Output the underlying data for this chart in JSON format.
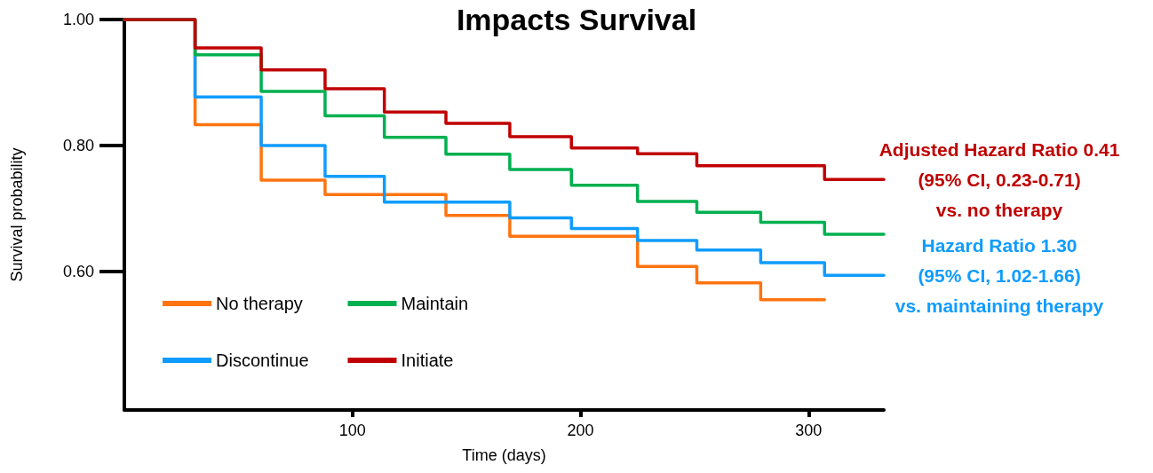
{
  "chart_data": {
    "type": "step",
    "title": "Impacts Survival",
    "xlabel": "Time (days)",
    "ylabel": "Survival probability",
    "x": [
      0,
      31,
      60,
      88,
      114,
      141,
      169,
      196,
      225,
      251,
      279,
      307,
      333
    ],
    "series": [
      {
        "name": "No therapy",
        "color": "#ff7410",
        "x": [
          0,
          31,
          60,
          88,
          114,
          141,
          169,
          196,
          225,
          251,
          279,
          307
        ],
        "values": [
          1.0,
          0.833,
          0.745,
          0.722,
          0.722,
          0.689,
          0.656,
          0.656,
          0.608,
          0.582,
          0.555,
          0.555
        ]
      },
      {
        "name": "Discontinue",
        "color": "#109cff",
        "values": [
          1.0,
          0.877,
          0.8,
          0.751,
          0.71,
          0.71,
          0.685,
          0.668,
          0.649,
          0.634,
          0.614,
          0.594,
          0.594
        ]
      },
      {
        "name": "Maintain",
        "color": "#00b050",
        "values": [
          1.0,
          0.944,
          0.886,
          0.847,
          0.813,
          0.786,
          0.762,
          0.737,
          0.711,
          0.694,
          0.678,
          0.659,
          0.659
        ]
      },
      {
        "name": "Initiate",
        "color": "#c00000",
        "values": [
          1.0,
          0.955,
          0.92,
          0.89,
          0.853,
          0.835,
          0.814,
          0.796,
          0.787,
          0.768,
          0.768,
          0.746,
          0.746
        ]
      }
    ],
    "xlim": [
      0,
      333
    ],
    "xticks": [
      100,
      200,
      300
    ],
    "ylim": [
      0.38,
      1.0
    ],
    "yticks": [
      {
        "value": 0.6,
        "label": "0.60"
      },
      {
        "value": 0.8,
        "label": "0.80"
      },
      {
        "value": 1.0,
        "label": "1.00"
      }
    ],
    "annotations": [
      {
        "text": "Adjusted Hazard Ratio 0.41\n(95% CI, 0.23-0.71)\nvs. no therapy",
        "x": 333,
        "y": 0.746
      },
      {
        "text": "Hazard Ratio 1.30\n(95% CI, 1.02-1.66)\nvs. maintaining therapy",
        "x": 333,
        "y": 0.594
      }
    ],
    "grid": false,
    "legend": "bottom left",
    "marker": "none",
    "line_style": "solid"
  }
}
